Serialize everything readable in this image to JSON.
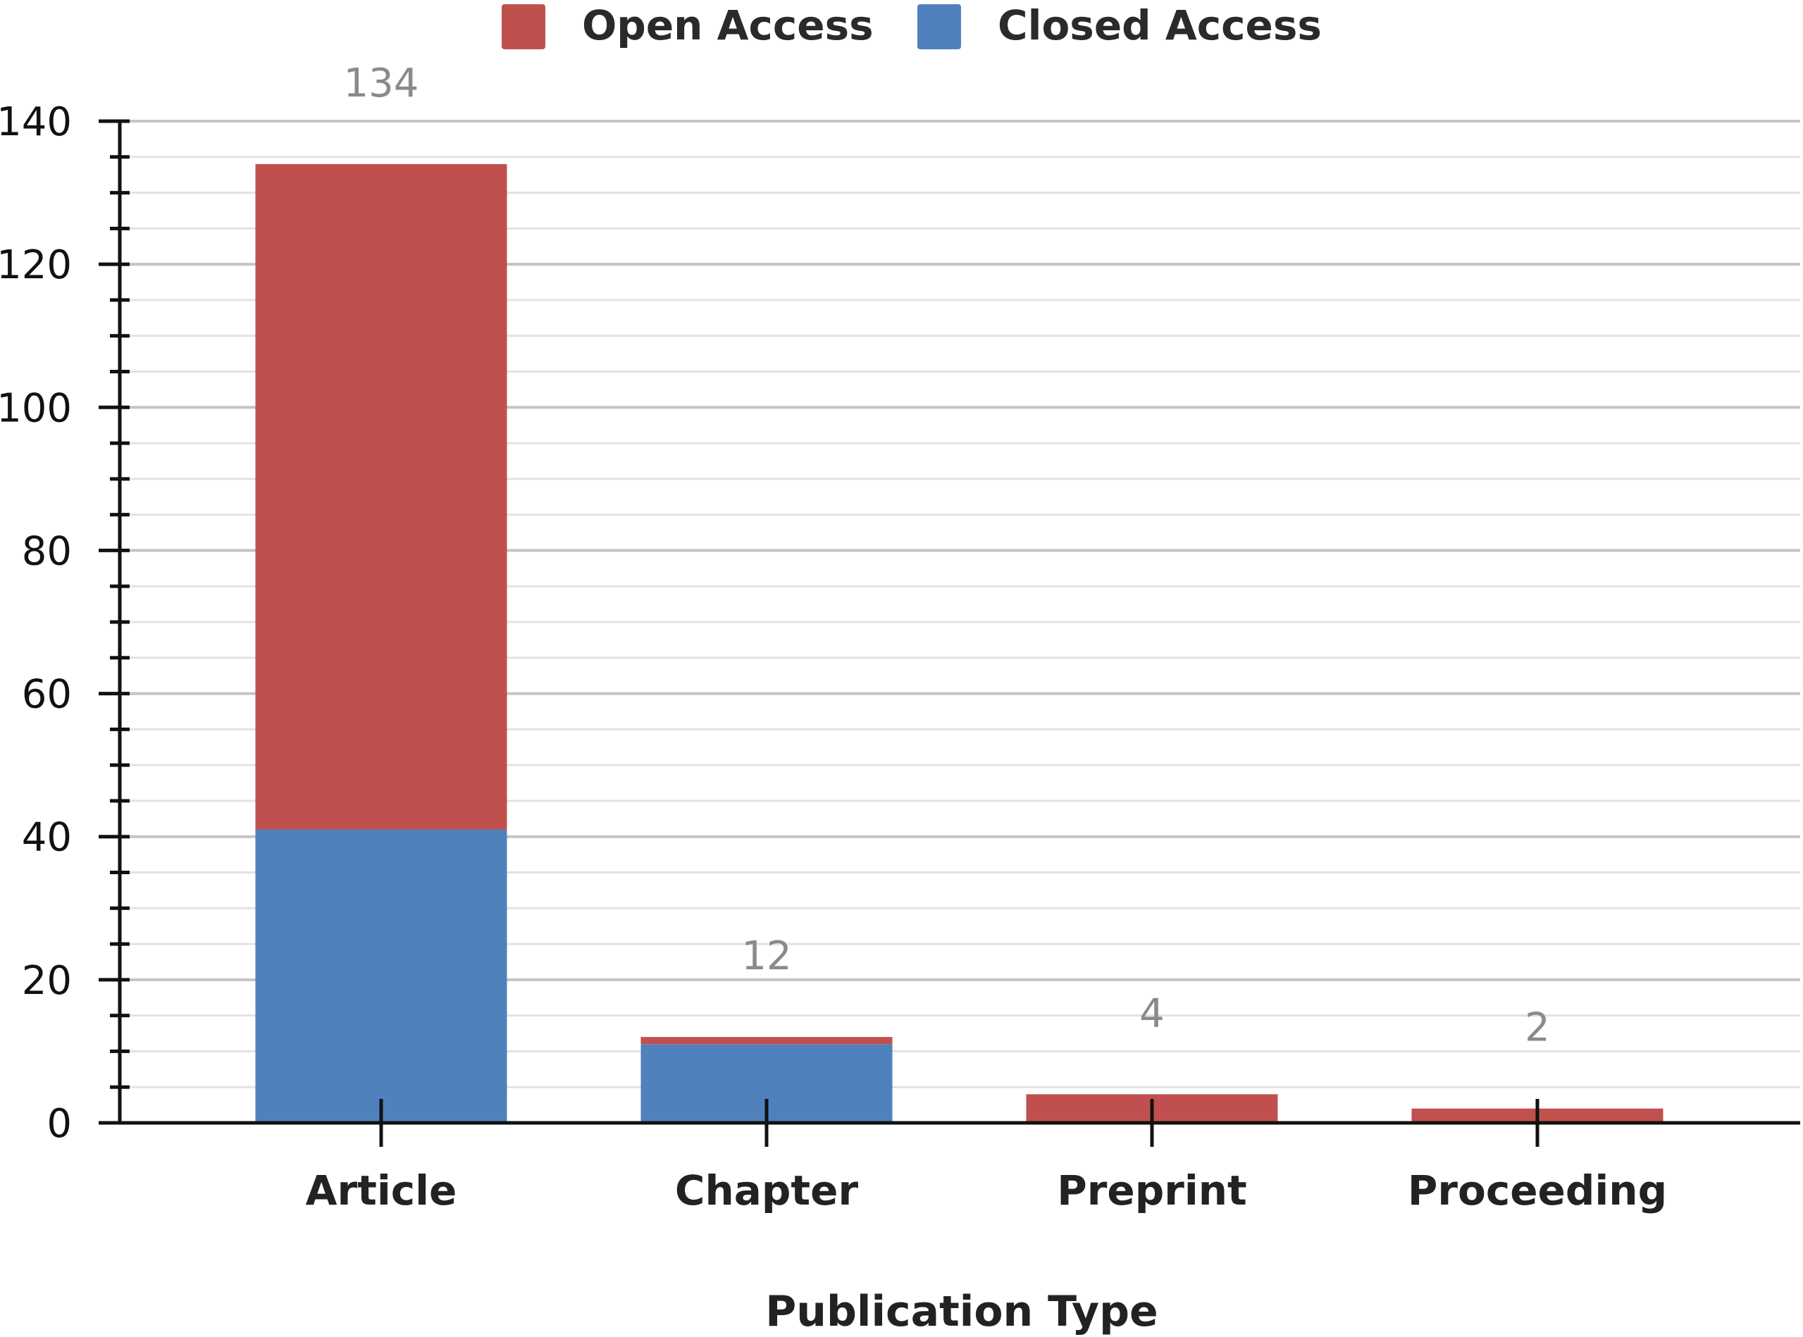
{
  "chart_data": {
    "type": "bar",
    "stacked": true,
    "title": "",
    "xlabel": "Publication Type",
    "ylabel": "",
    "categories": [
      "Article",
      "Chapter",
      "Preprint",
      "Proceeding"
    ],
    "series": [
      {
        "name": "Closed Access",
        "values": [
          41,
          11,
          0,
          0
        ],
        "color": "#4f81bd"
      },
      {
        "name": "Open Access",
        "values": [
          93,
          1,
          4,
          2
        ],
        "color": "#c0504d"
      }
    ],
    "totals": [
      "134",
      "12",
      "4",
      "2"
    ],
    "ylim": [
      0,
      140
    ],
    "yticks": [
      "0",
      "20",
      "40",
      "60",
      "80",
      "100",
      "120",
      "140"
    ],
    "grid": true,
    "legend": {
      "position": "top-center",
      "items": [
        {
          "name": "Open Access",
          "color": "#c0504d"
        },
        {
          "name": "Closed Access",
          "color": "#4f81bd"
        }
      ]
    }
  }
}
